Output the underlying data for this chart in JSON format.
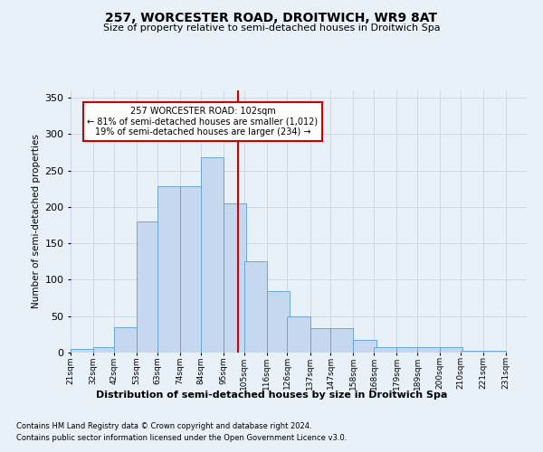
{
  "title": "257, WORCESTER ROAD, DROITWICH, WR9 8AT",
  "subtitle": "Size of property relative to semi-detached houses in Droitwich Spa",
  "xlabel": "Distribution of semi-detached houses by size in Droitwich Spa",
  "ylabel": "Number of semi-detached properties",
  "footer1": "Contains HM Land Registry data © Crown copyright and database right 2024.",
  "footer2": "Contains public sector information licensed under the Open Government Licence v3.0.",
  "annotation_title": "257 WORCESTER ROAD: 102sqm",
  "annotation_line1": "← 81% of semi-detached houses are smaller (1,012)",
  "annotation_line2": "19% of semi-detached houses are larger (234) →",
  "property_size": 102,
  "bin_starts": [
    21,
    32,
    42,
    53,
    63,
    74,
    84,
    95,
    105,
    116,
    126,
    137,
    147,
    158,
    168,
    179,
    189,
    200,
    210,
    221
  ],
  "bin_labels": [
    "21sqm",
    "32sqm",
    "42sqm",
    "53sqm",
    "63sqm",
    "74sqm",
    "84sqm",
    "95sqm",
    "105sqm",
    "116sqm",
    "126sqm",
    "137sqm",
    "147sqm",
    "158sqm",
    "168sqm",
    "179sqm",
    "189sqm",
    "200sqm",
    "210sqm",
    "221sqm",
    "231sqm"
  ],
  "values": [
    5,
    8,
    35,
    180,
    228,
    228,
    268,
    205,
    125,
    85,
    50,
    33,
    33,
    17,
    7,
    7,
    8,
    8,
    2,
    2
  ],
  "bar_color": "#c5d8f0",
  "bar_edge_color": "#5a9fd4",
  "vline_color": "#cc0000",
  "vline_x": 102,
  "annotation_box_color": "#ffffff",
  "annotation_box_edge": "#cc0000",
  "grid_color": "#d0d8e8",
  "background_color": "#e8f0f8",
  "ylim": [
    0,
    360
  ],
  "yticks": [
    0,
    50,
    100,
    150,
    200,
    250,
    300,
    350
  ]
}
